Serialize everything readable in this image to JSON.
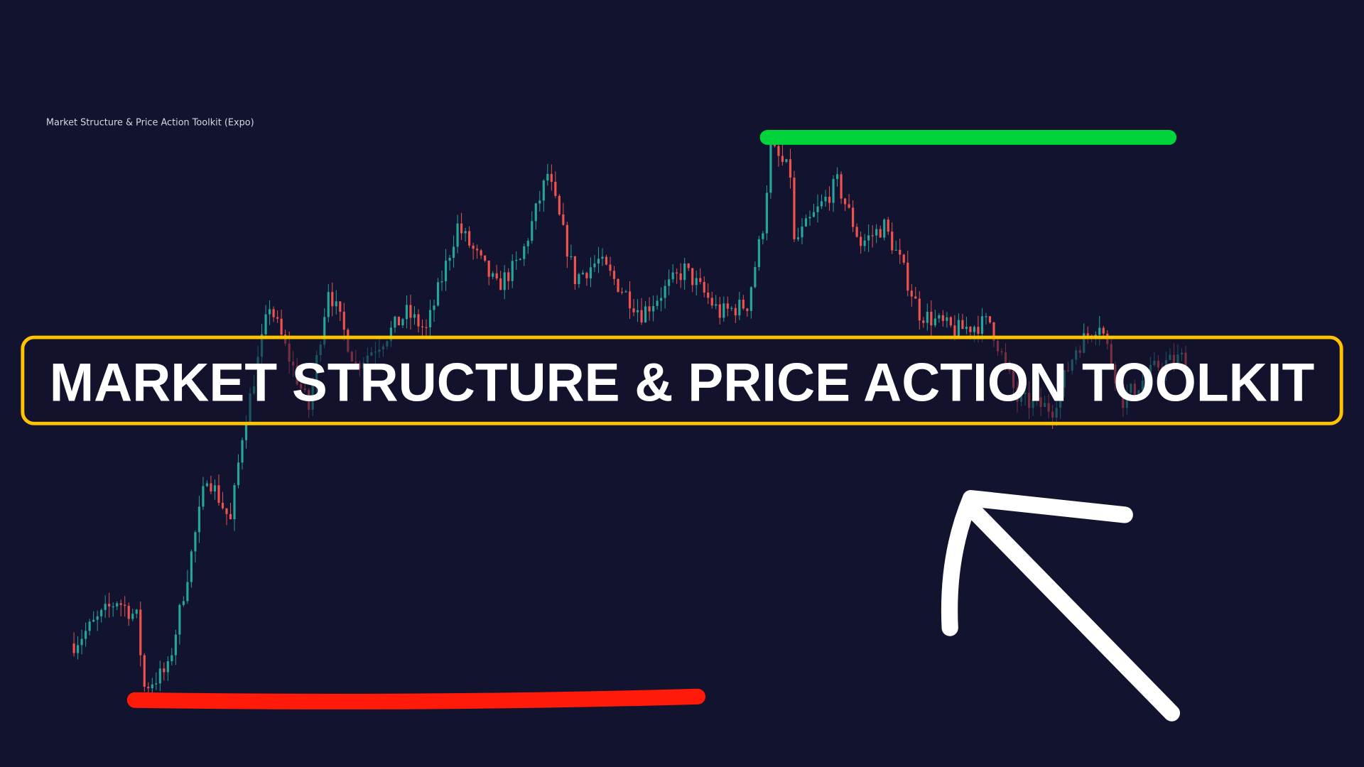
{
  "indicator_label": "Market Structure & Price Action Toolkit (Expo)",
  "title": "MARKET STRUCTURE & PRICE ACTION TOOLKIT",
  "colors": {
    "background": "#12132e",
    "bull_candle": "#26a69a",
    "bear_candle": "#ef5350",
    "high_line": "#00d43a",
    "low_line": "#ff1a0a",
    "title_frame": "#ffc400",
    "arrow": "#ffffff"
  },
  "icons": {
    "arrow": "hand-drawn-arrow-up-left"
  },
  "chart_data": {
    "type": "candlestick",
    "title": "",
    "xlabel": "",
    "ylabel": "",
    "grid": false,
    "price_path": [
      [
        0,
        142
      ],
      [
        11,
        192
      ],
      [
        16,
        172
      ],
      [
        18,
        92
      ],
      [
        24,
        112
      ],
      [
        29,
        222
      ],
      [
        34,
        337
      ],
      [
        40,
        282
      ],
      [
        43,
        382
      ],
      [
        50,
        532
      ],
      [
        54,
        482
      ],
      [
        60,
        412
      ],
      [
        65,
        552
      ],
      [
        72,
        462
      ],
      [
        79,
        492
      ],
      [
        85,
        522
      ],
      [
        90,
        502
      ],
      [
        98,
        622
      ],
      [
        108,
        552
      ],
      [
        114,
        582
      ],
      [
        121,
        682
      ],
      [
        128,
        562
      ],
      [
        134,
        582
      ],
      [
        145,
        522
      ],
      [
        156,
        572
      ],
      [
        165,
        522
      ],
      [
        172,
        532
      ],
      [
        176,
        622
      ],
      [
        178,
        712
      ],
      [
        183,
        682
      ],
      [
        184,
        602
      ],
      [
        195,
        672
      ],
      [
        201,
        602
      ],
      [
        207,
        622
      ],
      [
        211,
        582
      ],
      [
        216,
        522
      ],
      [
        225,
        502
      ],
      [
        234,
        512
      ],
      [
        241,
        422
      ],
      [
        250,
        412
      ],
      [
        256,
        482
      ],
      [
        262,
        512
      ],
      [
        268,
        422
      ],
      [
        277,
        462
      ],
      [
        284,
        472
      ]
    ]
  }
}
